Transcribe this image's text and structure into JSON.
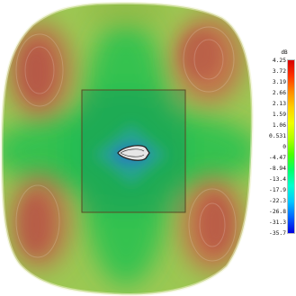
{
  "colorbar": {
    "unit": "dB",
    "ticks": [
      "4.25",
      "3.72",
      "3.19",
      "2.66",
      "2.13",
      "1.59",
      "1.06",
      "0.531",
      "0",
      "-4.47",
      "-8.94",
      "-13.4",
      "-17.9",
      "-22.3",
      "-26.8",
      "-31.3",
      "-35.7"
    ],
    "colors": [
      "#d60000",
      "#ff3300",
      "#ff8c00",
      "#ffd000",
      "#f0ff00",
      "#b0ff00",
      "#4cff00",
      "#00ff6a",
      "#00ffd0",
      "#00c8ff",
      "#0064ff",
      "#0000e0"
    ]
  },
  "pattern_colors": {
    "lobe": "#c86a4a",
    "mid": "#9cc33a",
    "center": "#49c25c",
    "edge": "#eef0d6"
  }
}
